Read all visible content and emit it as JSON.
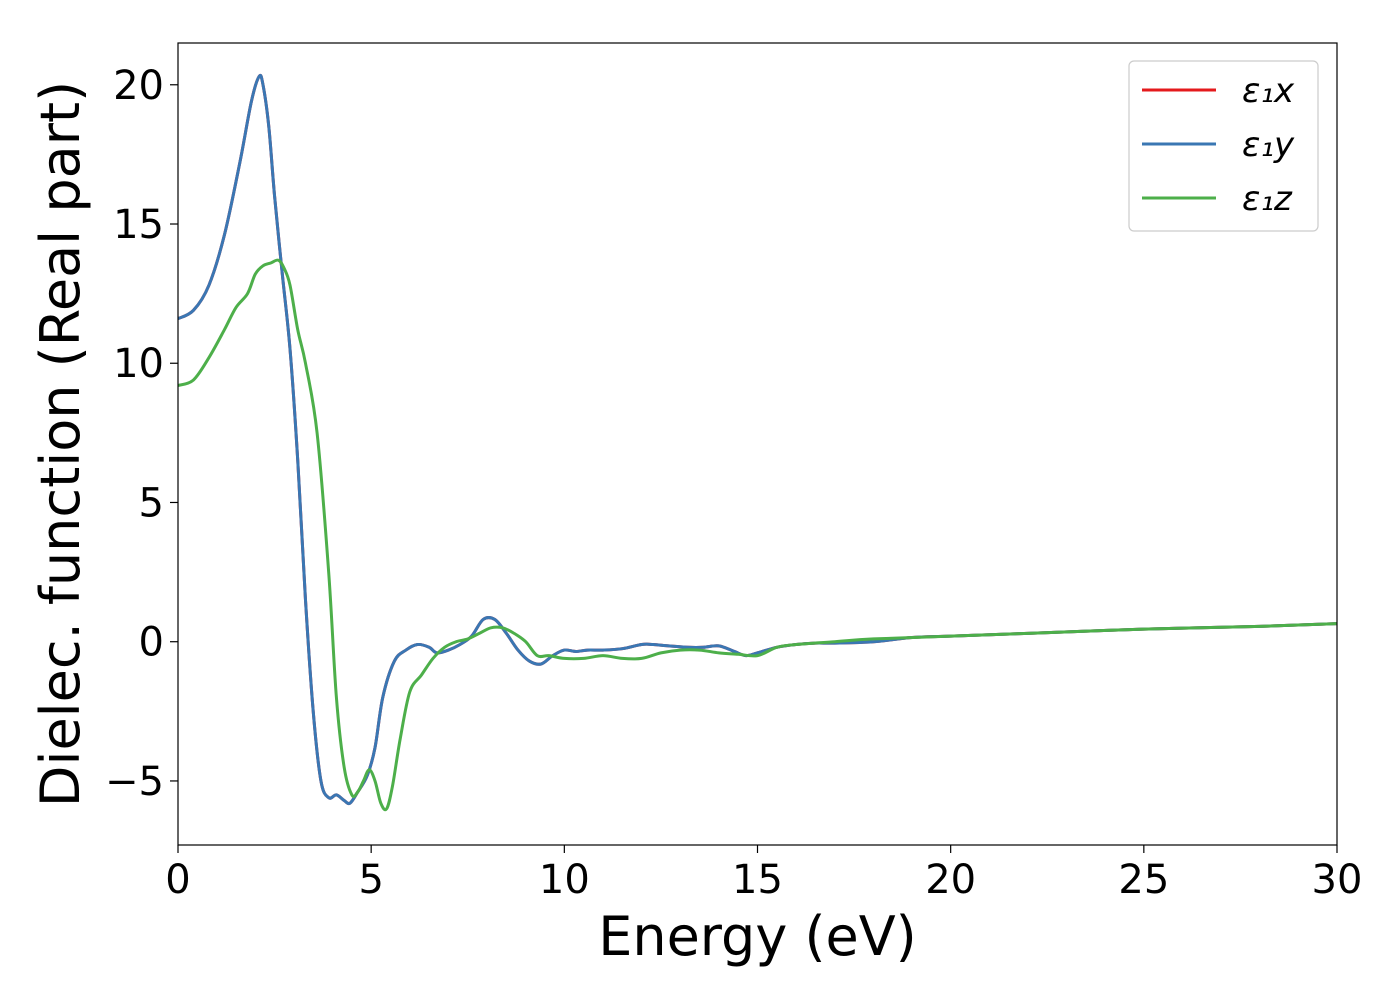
{
  "chart_data": {
    "type": "line",
    "xlabel": "Energy (eV)",
    "ylabel": "Dielec. function (Real part)",
    "xlim": [
      0,
      30
    ],
    "ylim": [
      -7.3,
      21.5
    ],
    "xticks": [
      0,
      5,
      10,
      15,
      20,
      25,
      30
    ],
    "xtick_labels": [
      "0",
      "5",
      "10",
      "15",
      "20",
      "25",
      "30"
    ],
    "yticks": [
      -5,
      0,
      5,
      10,
      15,
      20
    ],
    "ytick_labels": [
      "−5",
      "0",
      "5",
      "10",
      "15",
      "20"
    ],
    "grid": false,
    "legend_position": "top-right",
    "series": [
      {
        "name": "ε₁x",
        "color": "#e41a1c",
        "x": [
          0,
          0.4,
          0.8,
          1.2,
          1.6,
          1.9,
          2.1,
          2.2,
          2.35,
          2.5,
          2.7,
          2.9,
          3.1,
          3.3,
          3.5,
          3.7,
          3.9,
          4.1,
          4.3,
          4.45,
          4.65,
          4.9,
          5.1,
          5.3,
          5.6,
          5.9,
          6.2,
          6.5,
          6.7,
          7.0,
          7.3,
          7.6,
          7.9,
          8.2,
          8.5,
          8.8,
          9.1,
          9.4,
          9.7,
          10.0,
          10.3,
          10.6,
          11.0,
          11.5,
          12.0,
          12.3,
          12.7,
          13.2,
          13.6,
          14.0,
          14.4,
          14.7,
          15.0,
          15.5,
          16.0,
          16.5,
          17.0,
          18.0,
          19.0,
          20.0,
          22.0,
          25.0,
          28.0,
          30.0
        ],
        "y": [
          11.6,
          11.9,
          12.8,
          14.6,
          17.2,
          19.4,
          20.3,
          20.0,
          18.5,
          16.0,
          13.2,
          10.5,
          6.5,
          1.5,
          -2.5,
          -5.0,
          -5.6,
          -5.5,
          -5.7,
          -5.8,
          -5.4,
          -4.8,
          -3.8,
          -2.0,
          -0.7,
          -0.3,
          -0.1,
          -0.2,
          -0.4,
          -0.3,
          -0.1,
          0.2,
          0.8,
          0.8,
          0.3,
          -0.3,
          -0.7,
          -0.8,
          -0.5,
          -0.3,
          -0.35,
          -0.3,
          -0.3,
          -0.25,
          -0.1,
          -0.1,
          -0.15,
          -0.2,
          -0.2,
          -0.15,
          -0.35,
          -0.5,
          -0.4,
          -0.2,
          -0.1,
          -0.05,
          -0.05,
          0.0,
          0.15,
          0.2,
          0.3,
          0.45,
          0.55,
          0.65
        ]
      },
      {
        "name": "ε₁y",
        "color": "#3a77b3",
        "x": [
          0,
          0.4,
          0.8,
          1.2,
          1.6,
          1.9,
          2.1,
          2.2,
          2.35,
          2.5,
          2.7,
          2.9,
          3.1,
          3.3,
          3.5,
          3.7,
          3.9,
          4.1,
          4.3,
          4.45,
          4.65,
          4.9,
          5.1,
          5.3,
          5.6,
          5.9,
          6.2,
          6.5,
          6.7,
          7.0,
          7.3,
          7.6,
          7.9,
          8.2,
          8.5,
          8.8,
          9.1,
          9.4,
          9.7,
          10.0,
          10.3,
          10.6,
          11.0,
          11.5,
          12.0,
          12.3,
          12.7,
          13.2,
          13.6,
          14.0,
          14.4,
          14.7,
          15.0,
          15.5,
          16.0,
          16.5,
          17.0,
          18.0,
          19.0,
          20.0,
          22.0,
          25.0,
          28.0,
          30.0
        ],
        "y": [
          11.6,
          11.9,
          12.8,
          14.6,
          17.2,
          19.4,
          20.3,
          20.0,
          18.5,
          16.0,
          13.2,
          10.5,
          6.5,
          1.5,
          -2.5,
          -5.0,
          -5.6,
          -5.5,
          -5.7,
          -5.8,
          -5.4,
          -4.8,
          -3.8,
          -2.0,
          -0.7,
          -0.3,
          -0.1,
          -0.2,
          -0.4,
          -0.3,
          -0.1,
          0.2,
          0.8,
          0.8,
          0.3,
          -0.3,
          -0.7,
          -0.8,
          -0.5,
          -0.3,
          -0.35,
          -0.3,
          -0.3,
          -0.25,
          -0.1,
          -0.1,
          -0.15,
          -0.2,
          -0.2,
          -0.15,
          -0.35,
          -0.5,
          -0.4,
          -0.2,
          -0.1,
          -0.05,
          -0.05,
          0.0,
          0.15,
          0.2,
          0.3,
          0.45,
          0.55,
          0.65
        ]
      },
      {
        "name": "ε₁z",
        "color": "#4daf4a",
        "x": [
          0,
          0.4,
          0.8,
          1.2,
          1.5,
          1.8,
          2.0,
          2.2,
          2.4,
          2.6,
          2.75,
          2.9,
          3.1,
          3.3,
          3.6,
          3.9,
          4.1,
          4.3,
          4.5,
          4.65,
          4.8,
          4.95,
          5.1,
          5.25,
          5.4,
          5.55,
          5.75,
          6.0,
          6.3,
          6.6,
          6.9,
          7.2,
          7.5,
          7.8,
          8.1,
          8.4,
          8.7,
          9.0,
          9.3,
          9.6,
          10.0,
          10.5,
          11.0,
          11.5,
          12.0,
          12.5,
          13.0,
          13.5,
          14.0,
          14.5,
          15.0,
          15.5,
          16.0,
          17.0,
          18.0,
          20.0,
          22.0,
          25.0,
          28.0,
          30.0
        ],
        "y": [
          9.2,
          9.4,
          10.2,
          11.2,
          12.0,
          12.5,
          13.2,
          13.5,
          13.6,
          13.7,
          13.4,
          12.8,
          11.2,
          10.0,
          7.5,
          2.5,
          -2.0,
          -4.5,
          -5.5,
          -5.4,
          -5.0,
          -4.6,
          -5.0,
          -5.8,
          -6.0,
          -5.2,
          -3.5,
          -1.8,
          -1.2,
          -0.6,
          -0.2,
          0.0,
          0.1,
          0.3,
          0.5,
          0.5,
          0.3,
          0.0,
          -0.5,
          -0.5,
          -0.6,
          -0.6,
          -0.5,
          -0.6,
          -0.6,
          -0.4,
          -0.3,
          -0.3,
          -0.4,
          -0.45,
          -0.5,
          -0.2,
          -0.1,
          0.0,
          0.1,
          0.2,
          0.3,
          0.45,
          0.55,
          0.65
        ]
      }
    ]
  }
}
